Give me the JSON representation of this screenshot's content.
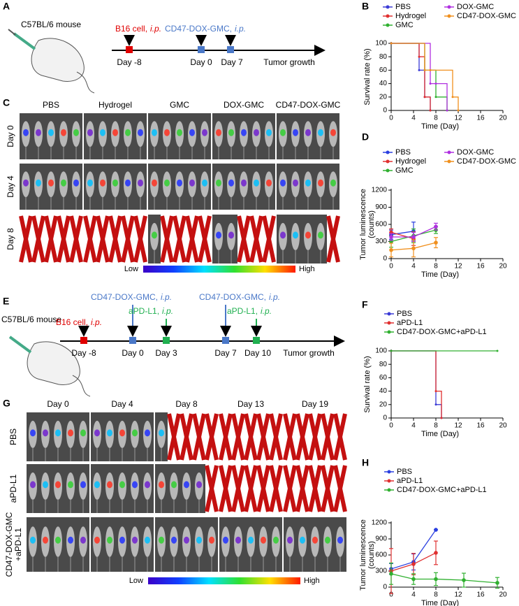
{
  "letters": [
    "A",
    "B",
    "C",
    "D",
    "E",
    "F",
    "G",
    "H"
  ],
  "panel_a": {
    "mouse": "C57BL/6 mouse",
    "injection": [
      "B16 cell,",
      "i.p."
    ],
    "treatment": [
      "CD47-DOX-GMC,",
      "i.p."
    ],
    "days": [
      "Day -8",
      "Day 0",
      "Day 7"
    ],
    "end": "Tumor growth"
  },
  "panel_c": {
    "columns": [
      "PBS",
      "Hydrogel",
      "GMC",
      "DOX-GMC",
      "CD47-DOX-GMC"
    ],
    "rows": [
      "Day 0",
      "Day 4",
      "Day 8"
    ],
    "scale": [
      "Low",
      "High"
    ]
  },
  "panel_e": {
    "mouse": "C57BL/6 mouse",
    "injection": [
      "B16 cell,",
      "i.p."
    ],
    "treatments": [
      [
        "CD47-DOX-GMC,",
        "i.p."
      ],
      [
        "aPD-L1,",
        "i.p."
      ],
      [
        "CD47-DOX-GMC,",
        "i.p."
      ],
      [
        "aPD-L1,",
        "i.p."
      ]
    ],
    "days": [
      "Day -8",
      "Day 0",
      "Day 3",
      "Day 7",
      "Day 10"
    ],
    "end": "Tumor growth"
  },
  "panel_f": {
    "columns": [
      "Day 0",
      "Day 4",
      "Day 8",
      "Day 13",
      "Day 19"
    ],
    "rows": [
      [
        "PBS"
      ],
      [
        "aPD-L1"
      ],
      [
        "CD47-DOX-GMC",
        "+aPD-L1"
      ]
    ],
    "scale": [
      "Low",
      "High"
    ]
  },
  "chart_data": [
    {
      "type": "line",
      "step": true,
      "ylabel": [
        "Survival rate (%)"
      ],
      "xlabel": "Time (Day)",
      "xlim": [
        0,
        20
      ],
      "ylim": [
        0,
        100
      ],
      "xticks": [
        0,
        4,
        8,
        12,
        16,
        20
      ],
      "yticks": [
        0,
        20,
        40,
        60,
        80,
        100
      ],
      "series": [
        {
          "name": "PBS",
          "color": "#3b3bd6",
          "x": [
            0,
            5,
            6,
            7
          ],
          "values": [
            100,
            60,
            20,
            0
          ]
        },
        {
          "name": "Hydrogel",
          "color": "#e03030",
          "x": [
            0,
            5,
            6,
            7
          ],
          "values": [
            100,
            80,
            20,
            0
          ]
        },
        {
          "name": "GMC",
          "color": "#30b030",
          "x": [
            0,
            6,
            8,
            10
          ],
          "values": [
            100,
            60,
            20,
            0
          ]
        },
        {
          "name": "DOX-GMC",
          "color": "#b030e0",
          "x": [
            0,
            7,
            8,
            10
          ],
          "values": [
            100,
            40,
            40,
            0
          ]
        },
        {
          "name": "CD47-DOX-GMC",
          "color": "#f0901e",
          "x": [
            0,
            6,
            7,
            11,
            12
          ],
          "values": [
            100,
            60,
            60,
            20,
            0
          ]
        }
      ]
    },
    {
      "type": "line",
      "step": false,
      "ylabel": [
        "Tumor luminescence",
        "(counts)"
      ],
      "xlabel": "Time (Day)",
      "xlim": [
        0,
        20
      ],
      "ylim": [
        0,
        1200
      ],
      "xticks": [
        0,
        4,
        8,
        12,
        16,
        20
      ],
      "yticks": [
        0,
        300,
        600,
        900,
        1200
      ],
      "series": [
        {
          "name": "PBS",
          "color": "#2a3fe0",
          "x": [
            0,
            4
          ],
          "values": [
            420,
            480
          ],
          "errors": [
            80,
            160
          ]
        },
        {
          "name": "Hydrogel",
          "color": "#e03030",
          "x": [
            0,
            4
          ],
          "values": [
            460,
            350
          ],
          "errors": [
            60,
            120
          ]
        },
        {
          "name": "GMC",
          "color": "#30b030",
          "x": [
            0,
            4,
            8
          ],
          "values": [
            300,
            400,
            500
          ],
          "errors": [
            100,
            120,
            60
          ]
        },
        {
          "name": "DOX-GMC",
          "color": "#b030e0",
          "x": [
            0,
            4,
            8
          ],
          "values": [
            380,
            380,
            560
          ],
          "errors": [
            60,
            80,
            60
          ]
        },
        {
          "name": "CD47-DOX-GMC",
          "color": "#f0901e",
          "x": [
            0,
            4,
            8
          ],
          "values": [
            150,
            180,
            280
          ],
          "errors": [
            120,
            150,
            90
          ]
        }
      ]
    },
    {
      "type": "line",
      "step": true,
      "ylabel": [
        "Survival rate (%)"
      ],
      "xlabel": "Time (Day)",
      "xlim": [
        0,
        20
      ],
      "ylim": [
        0,
        100
      ],
      "xticks": [
        0,
        4,
        8,
        12,
        16,
        20
      ],
      "yticks": [
        0,
        20,
        40,
        60,
        80,
        100
      ],
      "series": [
        {
          "name": "PBS",
          "color": "#3b3bd6",
          "x": [
            0,
            8,
            9
          ],
          "values": [
            100,
            20,
            0
          ]
        },
        {
          "name": "aPD-L1",
          "color": "#e03030",
          "x": [
            0,
            8,
            9
          ],
          "values": [
            100,
            40,
            0
          ]
        },
        {
          "name": "CD47-DOX-GMC+aPD-L1",
          "color": "#30b030",
          "x": [
            0,
            19
          ],
          "values": [
            100,
            100
          ]
        }
      ]
    },
    {
      "type": "line",
      "step": false,
      "ylabel": [
        "Tumor luminescence",
        "(counts)"
      ],
      "xlabel": "Time (Day)",
      "xlim": [
        0,
        20
      ],
      "ylim": [
        0,
        1200
      ],
      "xticks": [
        0,
        4,
        8,
        12,
        16,
        20
      ],
      "yticks": [
        0,
        300,
        600,
        900,
        1200
      ],
      "series": [
        {
          "name": "PBS",
          "color": "#2a3fe0",
          "x": [
            0,
            4,
            8
          ],
          "values": [
            340,
            470,
            1070
          ],
          "errors": [
            100,
            150,
            0
          ]
        },
        {
          "name": "aPD-L1",
          "color": "#e03030",
          "x": [
            0,
            4,
            8
          ],
          "values": [
            300,
            430,
            640
          ],
          "errors": [
            420,
            200,
            220
          ]
        },
        {
          "name": "CD47-DOX-GMC+aPD-L1",
          "color": "#30b030",
          "x": [
            0,
            4,
            8,
            13,
            19
          ],
          "values": [
            250,
            150,
            150,
            130,
            80
          ],
          "errors": [
            200,
            100,
            120,
            130,
            100
          ]
        }
      ]
    }
  ]
}
